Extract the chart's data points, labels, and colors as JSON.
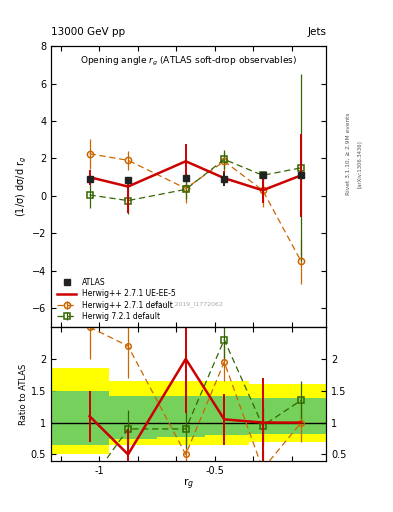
{
  "title_top": "13000 GeV pp",
  "title_top_right": "Jets",
  "plot_title": "Opening angle r$_g$ (ATLAS soft-drop observables)",
  "ylabel_main": "(1/σ) dσ/d r$_g$",
  "ylabel_ratio": "Ratio to ATLAS",
  "xlabel": "r$_g$",
  "right_label_top": "Rivet 3.1.10, ≥ 2.9M events",
  "right_label_bot": "[arXiv:1306.3436]",
  "watermark": "ATLAS_2019_I1772062",
  "x_values": [
    -1.25,
    -1.05,
    -0.75,
    -0.55,
    -0.35,
    -0.15
  ],
  "atlas_y": [
    0.9,
    0.85,
    0.95,
    0.9,
    1.1,
    1.1
  ],
  "atlas_yerr": [
    0.15,
    0.15,
    0.15,
    0.35,
    0.15,
    0.15
  ],
  "hw_def_y": [
    2.25,
    1.9,
    0.4,
    1.85,
    0.3,
    -3.5
  ],
  "hw_def_yerr": [
    0.8,
    0.5,
    0.8,
    0.5,
    0.9,
    1.2
  ],
  "hw_ue_y": [
    1.0,
    0.5,
    1.85,
    0.95,
    0.3,
    1.1
  ],
  "hw_ue_yerr_lo": [
    0.4,
    1.4,
    0.9,
    0.4,
    0.7,
    2.2
  ],
  "hw_ue_yerr_hi": [
    0.4,
    0.4,
    0.9,
    0.4,
    0.7,
    2.2
  ],
  "hw721_y": [
    0.05,
    -0.25,
    0.35,
    1.95,
    1.1,
    1.5
  ],
  "hw721_yerr": [
    0.7,
    0.7,
    0.5,
    0.5,
    0.2,
    5.0
  ],
  "r_def": [
    2.5,
    2.2,
    0.5,
    1.95,
    0.27,
    1.0
  ],
  "r_ue": [
    1.1,
    0.5,
    2.0,
    1.05,
    1.0,
    1.0
  ],
  "r_721": [
    0.06,
    0.9,
    0.9,
    2.3,
    0.95,
    1.35
  ],
  "r_def_err_lo": [
    0.5,
    0.5,
    0.3,
    0.3,
    0.3,
    0.3
  ],
  "r_def_err_hi": [
    0.5,
    0.5,
    0.3,
    0.3,
    0.3,
    0.3
  ],
  "r_ue_err_lo": [
    0.4,
    1.1,
    0.85,
    0.4,
    0.7,
    0.0
  ],
  "r_ue_err_hi": [
    0.4,
    0.4,
    0.85,
    0.4,
    0.7,
    0.0
  ],
  "r_721_err_lo": [
    0.3,
    0.3,
    0.3,
    0.3,
    0.3,
    0.3
  ],
  "r_721_err_hi": [
    0.3,
    0.3,
    0.3,
    0.3,
    0.3,
    0.3
  ],
  "ylim_main": [
    -7,
    8
  ],
  "ylim_ratio": [
    0.4,
    2.5
  ],
  "xlim": [
    -1.45,
    -0.02
  ],
  "xticks": [
    -1.4,
    -1.2,
    -1.0,
    -0.8,
    -0.6,
    -0.4,
    -0.2
  ],
  "xticklabels": [
    "",
    "-1",
    "",
    "",
    "-0.5",
    "",
    ""
  ],
  "band_x_edges": [
    -1.45,
    -1.15,
    -0.9,
    -0.65,
    -0.42,
    -0.22,
    -0.02
  ],
  "band_yellow_lo": [
    0.5,
    0.65,
    0.65,
    0.65,
    0.7,
    0.7
  ],
  "band_yellow_hi": [
    1.85,
    1.65,
    1.65,
    1.65,
    1.6,
    1.6
  ],
  "band_green_lo": [
    0.65,
    0.75,
    0.78,
    0.8,
    0.82,
    0.82
  ],
  "band_green_hi": [
    1.5,
    1.42,
    1.42,
    1.42,
    1.38,
    1.38
  ],
  "color_atlas": "#222222",
  "color_hw_def": "#cc6600",
  "color_hw_ue": "#cc0000",
  "color_hw721": "#336600",
  "color_yellow": "#ffff00",
  "color_green": "#66cc66"
}
